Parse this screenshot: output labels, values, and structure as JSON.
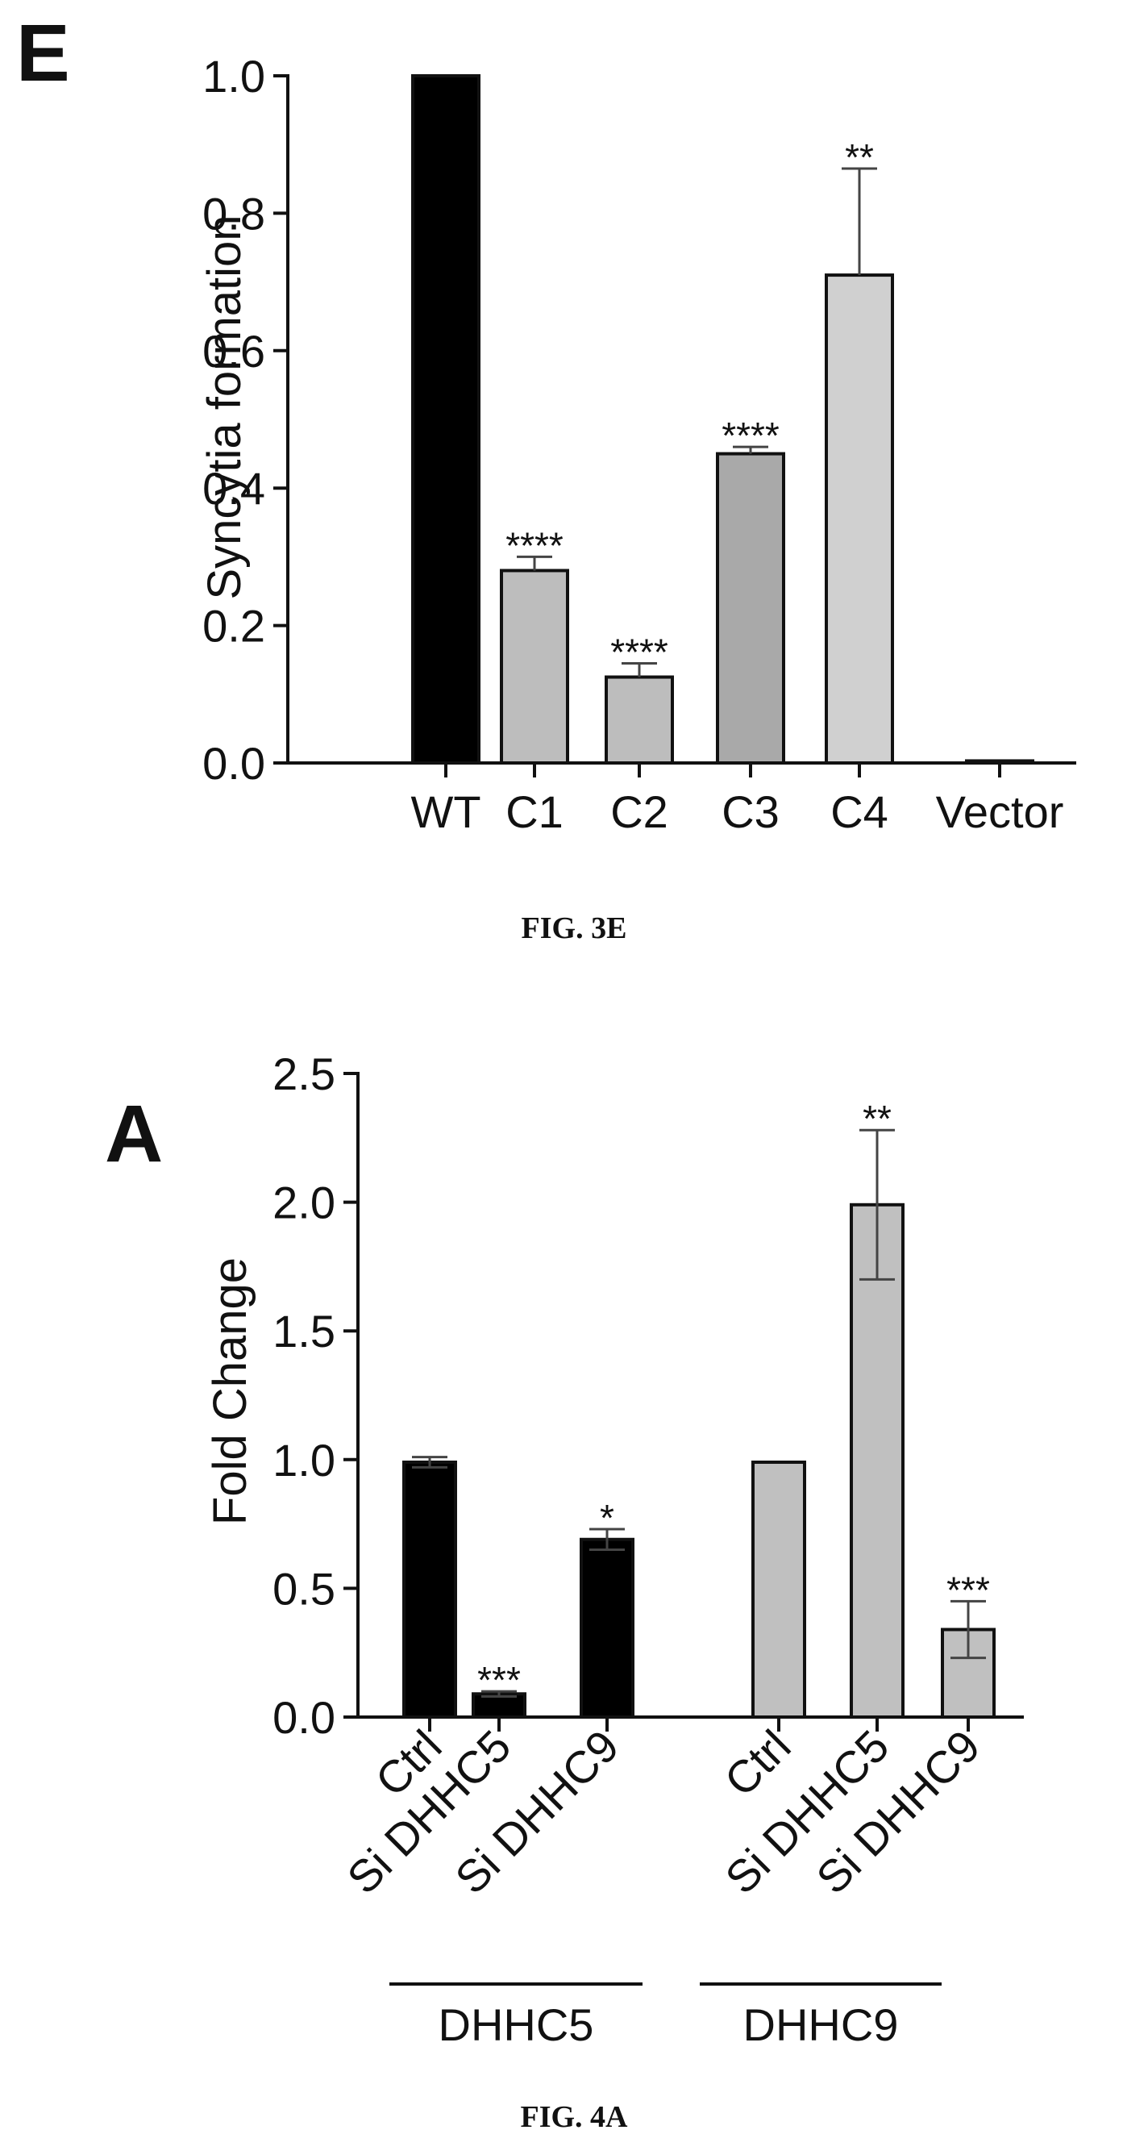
{
  "chart_data": [
    {
      "type": "bar",
      "panel_label": "E",
      "caption": "FIG. 3E",
      "title": "",
      "xlabel": "",
      "ylabel": "Syncytia formation",
      "ylim": [
        0,
        1.0
      ],
      "yticks": [
        "0.0",
        "0.2",
        "0.4",
        "0.6",
        "0.8",
        "1.0"
      ],
      "categories": [
        "WT",
        "C1",
        "C2",
        "C3",
        "C4",
        "Vector"
      ],
      "values": [
        1.0,
        0.28,
        0.125,
        0.45,
        0.71,
        0.003
      ],
      "errors": [
        0,
        0.02,
        0.02,
        0.01,
        0.155,
        0
      ],
      "significance": [
        "",
        "****",
        "****",
        "****",
        "**",
        ""
      ],
      "colors": [
        "#000000",
        "#bdbdbd",
        "#bdbdbd",
        "#a9a9a9",
        "#d0d0d0",
        "#ffffff"
      ]
    },
    {
      "type": "bar",
      "panel_label": "A",
      "caption": "FIG. 4A",
      "title": "",
      "xlabel": "",
      "ylabel": "Fold Change",
      "ylim": [
        0,
        2.5
      ],
      "yticks": [
        "0.0",
        "0.5",
        "1.0",
        "1.5",
        "2.0",
        "2.5"
      ],
      "categories": [
        "Ctrl",
        "Si DHHC5",
        "Si DHHC9",
        "Ctrl",
        "Si DHHC5",
        "Si DHHC9"
      ],
      "groups": [
        {
          "name": "DHHC5",
          "indices": [
            0,
            1,
            2
          ]
        },
        {
          "name": "DHHC9",
          "indices": [
            3,
            4,
            5
          ]
        }
      ],
      "values": [
        0.99,
        0.09,
        0.69,
        0.99,
        1.99,
        0.34
      ],
      "errors": [
        0.02,
        0.01,
        0.04,
        0,
        0.29,
        0.11
      ],
      "significance": [
        "",
        "***",
        "*",
        "",
        "**",
        "***"
      ],
      "colors": [
        "#000000",
        "#000000",
        "#000000",
        "#c0c0c0",
        "#c0c0c0",
        "#c0c0c0"
      ]
    }
  ]
}
